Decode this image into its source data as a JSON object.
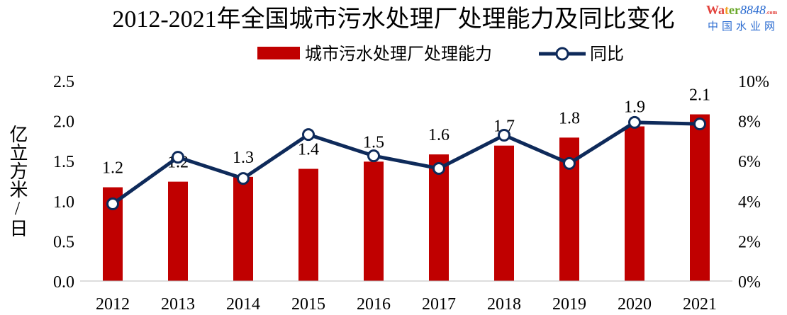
{
  "chart_data": {
    "type": "bar+line",
    "title": "2012-2021年全国城市污水处理厂处理能力及同比变化",
    "categories": [
      "2012",
      "2013",
      "2014",
      "2015",
      "2016",
      "2017",
      "2018",
      "2019",
      "2020",
      "2021"
    ],
    "series": [
      {
        "name": "城市污水处理厂处理能力",
        "type": "bar",
        "axis": "left",
        "color": "#C00000",
        "values": [
          1.17,
          1.24,
          1.3,
          1.4,
          1.49,
          1.58,
          1.69,
          1.79,
          1.93,
          2.08
        ],
        "labels": [
          "1.2",
          "1.2",
          "1.3",
          "1.4",
          "1.5",
          "1.6",
          "1.7",
          "1.8",
          "1.9",
          "2.1"
        ]
      },
      {
        "name": "同比",
        "type": "line",
        "axis": "right",
        "color": "#0E2A5A",
        "values": [
          3.85,
          6.18,
          5.12,
          7.31,
          6.25,
          5.62,
          7.28,
          5.87,
          7.92,
          7.84
        ]
      }
    ],
    "ylabel": "亿立方米/日",
    "ylim": [
      0,
      2.5
    ],
    "yticks": [
      "0.0",
      "0.5",
      "1.0",
      "1.5",
      "2.0",
      "2.5"
    ],
    "y2lim": [
      0,
      10
    ],
    "y2ticks": [
      "0%",
      "2%",
      "4%",
      "6%",
      "8%",
      "10%"
    ],
    "legend": "top-center",
    "grid": false
  },
  "watermark": {
    "brand": "Water8848.com",
    "name": "中国水业网"
  }
}
